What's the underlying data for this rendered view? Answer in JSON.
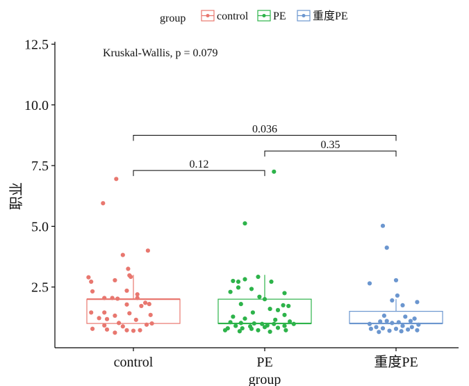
{
  "chart_data": {
    "type": "boxplot",
    "xlabel": "group",
    "ylabel": "职业",
    "ylim": [
      0,
      12.6
    ],
    "yticks": [
      2.5,
      5.0,
      7.5,
      10.0,
      12.5
    ],
    "ytick_labels": [
      "2.5",
      "5.0",
      "7.5",
      "10.0",
      "12.5"
    ],
    "categories": [
      "control",
      "PE",
      "重度PE"
    ],
    "legend": {
      "title": "group",
      "position": "top",
      "entries": [
        "control",
        "PE",
        "重度PE"
      ]
    },
    "colors": [
      "#E8776F",
      "#2DB34A",
      "#6B96CF"
    ],
    "annotation": "Kruskal-Wallis, p = 0.079",
    "comparisons": [
      {
        "from": 0,
        "to": 1,
        "label": "0.12",
        "y": 7.3
      },
      {
        "from": 1,
        "to": 2,
        "label": "0.35",
        "y": 8.1
      },
      {
        "from": 0,
        "to": 2,
        "label": "0.036",
        "y": 8.75
      }
    ],
    "series": [
      {
        "name": "control",
        "box": {
          "q1": 1.0,
          "median": 2.0,
          "q3": 2.0,
          "whisker_low": 1.0,
          "whisker_high": 3.0
        },
        "points": [
          {
            "x": -0.13,
            "y": 6.95
          },
          {
            "x": -0.23,
            "y": 5.95
          },
          {
            "x": 0.11,
            "y": 4.0
          },
          {
            "x": -0.08,
            "y": 3.82
          },
          {
            "x": -0.04,
            "y": 3.25
          },
          {
            "x": -0.03,
            "y": 2.98
          },
          {
            "x": -0.02,
            "y": 2.92
          },
          {
            "x": -0.34,
            "y": 2.9
          },
          {
            "x": -0.32,
            "y": 2.72
          },
          {
            "x": -0.14,
            "y": 2.78
          },
          {
            "x": -0.31,
            "y": 2.32
          },
          {
            "x": -0.05,
            "y": 2.35
          },
          {
            "x": 0.03,
            "y": 2.2
          },
          {
            "x": -0.22,
            "y": 2.05
          },
          {
            "x": -0.16,
            "y": 2.05
          },
          {
            "x": -0.12,
            "y": 2.02
          },
          {
            "x": 0.03,
            "y": 2.05
          },
          {
            "x": 0.09,
            "y": 1.85
          },
          {
            "x": 0.12,
            "y": 1.8
          },
          {
            "x": -0.05,
            "y": 1.78
          },
          {
            "x": 0.06,
            "y": 1.72
          },
          {
            "x": -0.32,
            "y": 1.45
          },
          {
            "x": -0.22,
            "y": 1.45
          },
          {
            "x": -0.03,
            "y": 1.42
          },
          {
            "x": -0.14,
            "y": 1.32
          },
          {
            "x": 0.13,
            "y": 1.35
          },
          {
            "x": -0.26,
            "y": 1.22
          },
          {
            "x": -0.2,
            "y": 1.18
          },
          {
            "x": 0.02,
            "y": 1.15
          },
          {
            "x": 0.14,
            "y": 1.0
          },
          {
            "x": -0.11,
            "y": 1.02
          },
          {
            "x": -0.22,
            "y": 0.92
          },
          {
            "x": 0.1,
            "y": 0.95
          },
          {
            "x": -0.08,
            "y": 0.88
          },
          {
            "x": -0.31,
            "y": 0.78
          },
          {
            "x": -0.2,
            "y": 0.75
          },
          {
            "x": -0.05,
            "y": 0.72
          },
          {
            "x": 0.05,
            "y": 0.72
          },
          {
            "x": -0.14,
            "y": 0.62
          },
          {
            "x": 0.0,
            "y": 0.7
          }
        ]
      },
      {
        "name": "PE",
        "box": {
          "q1": 1.0,
          "median": 1.0,
          "q3": 2.0,
          "whisker_low": 1.0,
          "whisker_high": 3.0
        },
        "points": [
          {
            "x": 0.07,
            "y": 7.25
          },
          {
            "x": -0.15,
            "y": 5.12
          },
          {
            "x": -0.05,
            "y": 2.92
          },
          {
            "x": -0.15,
            "y": 2.82
          },
          {
            "x": -0.24,
            "y": 2.75
          },
          {
            "x": -0.2,
            "y": 2.72
          },
          {
            "x": 0.05,
            "y": 2.72
          },
          {
            "x": -0.2,
            "y": 2.48
          },
          {
            "x": -0.1,
            "y": 2.42
          },
          {
            "x": -0.26,
            "y": 2.3
          },
          {
            "x": 0.15,
            "y": 2.25
          },
          {
            "x": -0.04,
            "y": 2.1
          },
          {
            "x": 0.0,
            "y": 2.0
          },
          {
            "x": -0.18,
            "y": 1.8
          },
          {
            "x": 0.14,
            "y": 1.75
          },
          {
            "x": 0.18,
            "y": 1.72
          },
          {
            "x": 0.04,
            "y": 1.6
          },
          {
            "x": 0.1,
            "y": 1.55
          },
          {
            "x": -0.09,
            "y": 1.45
          },
          {
            "x": 0.15,
            "y": 1.35
          },
          {
            "x": -0.24,
            "y": 1.28
          },
          {
            "x": -0.15,
            "y": 1.2
          },
          {
            "x": 0.08,
            "y": 1.15
          },
          {
            "x": 0.19,
            "y": 1.08
          },
          {
            "x": -0.18,
            "y": 1.02
          },
          {
            "x": -0.08,
            "y": 1.0
          },
          {
            "x": -0.02,
            "y": 0.98
          },
          {
            "x": 0.07,
            "y": 0.98
          },
          {
            "x": -0.22,
            "y": 0.9
          },
          {
            "x": -0.11,
            "y": 0.88
          },
          {
            "x": 0.02,
            "y": 0.92
          },
          {
            "x": 0.15,
            "y": 0.9
          },
          {
            "x": -0.28,
            "y": 0.8
          },
          {
            "x": -0.17,
            "y": 0.8
          },
          {
            "x": 0.1,
            "y": 0.82
          },
          {
            "x": -0.3,
            "y": 0.72
          },
          {
            "x": -0.05,
            "y": 0.72
          },
          {
            "x": 0.16,
            "y": 0.72
          },
          {
            "x": -0.19,
            "y": 0.68
          },
          {
            "x": 0.04,
            "y": 0.66
          },
          {
            "x": -0.1,
            "y": 0.78
          },
          {
            "x": 0.22,
            "y": 0.98
          },
          {
            "x": -0.26,
            "y": 1.05
          },
          {
            "x": 0.0,
            "y": 0.85
          }
        ]
      },
      {
        "name": "重度PE",
        "box": {
          "q1": 1.0,
          "median": 1.0,
          "q3": 1.5,
          "whisker_low": 1.0,
          "whisker_high": 2.0
        },
        "points": [
          {
            "x": -0.1,
            "y": 5.02
          },
          {
            "x": -0.07,
            "y": 4.12
          },
          {
            "x": 0.0,
            "y": 2.78
          },
          {
            "x": -0.2,
            "y": 2.65
          },
          {
            "x": 0.01,
            "y": 2.15
          },
          {
            "x": 0.16,
            "y": 1.88
          },
          {
            "x": -0.03,
            "y": 1.95
          },
          {
            "x": 0.05,
            "y": 1.75
          },
          {
            "x": -0.09,
            "y": 1.32
          },
          {
            "x": 0.07,
            "y": 1.28
          },
          {
            "x": 0.14,
            "y": 1.2
          },
          {
            "x": -0.12,
            "y": 1.08
          },
          {
            "x": -0.07,
            "y": 1.1
          },
          {
            "x": 0.02,
            "y": 1.05
          },
          {
            "x": 0.11,
            "y": 1.1
          },
          {
            "x": -0.2,
            "y": 0.98
          },
          {
            "x": -0.03,
            "y": 1.02
          },
          {
            "x": 0.17,
            "y": 0.95
          },
          {
            "x": -0.15,
            "y": 0.85
          },
          {
            "x": 0.05,
            "y": 0.9
          },
          {
            "x": 0.12,
            "y": 0.85
          },
          {
            "x": -0.19,
            "y": 0.78
          },
          {
            "x": -0.1,
            "y": 0.8
          },
          {
            "x": 0.0,
            "y": 0.78
          },
          {
            "x": 0.09,
            "y": 0.75
          },
          {
            "x": 0.16,
            "y": 0.72
          },
          {
            "x": -0.05,
            "y": 0.7
          },
          {
            "x": -0.13,
            "y": 0.65
          },
          {
            "x": 0.04,
            "y": 0.68
          }
        ]
      }
    ]
  }
}
